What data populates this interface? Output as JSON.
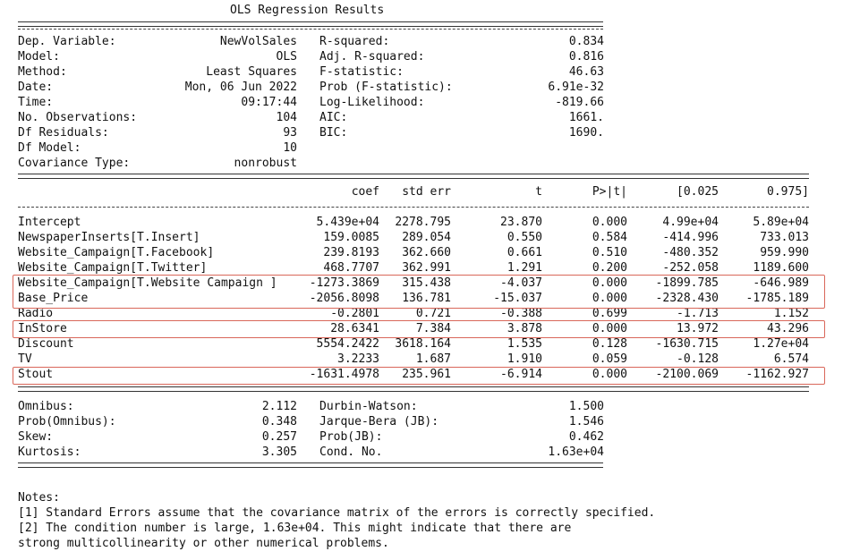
{
  "title": "OLS Regression Results",
  "summary": {
    "left": [
      {
        "label": "Dep. Variable:",
        "value": "NewVolSales"
      },
      {
        "label": "Model:",
        "value": "OLS"
      },
      {
        "label": "Method:",
        "value": "Least Squares"
      },
      {
        "label": "Date:",
        "value": "Mon, 06 Jun 2022"
      },
      {
        "label": "Time:",
        "value": "09:17:44"
      },
      {
        "label": "No. Observations:",
        "value": "104"
      },
      {
        "label": "Df Residuals:",
        "value": "93"
      },
      {
        "label": "Df Model:",
        "value": "10"
      },
      {
        "label": "Covariance Type:",
        "value": "nonrobust"
      }
    ],
    "right": [
      {
        "label": "R-squared:",
        "value": "0.834"
      },
      {
        "label": "Adj. R-squared:",
        "value": "0.816"
      },
      {
        "label": "F-statistic:",
        "value": "46.63"
      },
      {
        "label": "Prob (F-statistic):",
        "value": "6.91e-32"
      },
      {
        "label": "Log-Likelihood:",
        "value": "-819.66"
      },
      {
        "label": "AIC:",
        "value": "1661."
      },
      {
        "label": "BIC:",
        "value": "1690."
      }
    ]
  },
  "coef_table": {
    "headers": [
      "coef",
      "std err",
      "t",
      "P>|t|",
      "[0.025",
      "0.975]"
    ],
    "rows": [
      {
        "name": "Intercept",
        "values": [
          "5.439e+04",
          "2278.795",
          "23.870",
          "0.000",
          "4.99e+04",
          "5.89e+04"
        ]
      },
      {
        "name": "NewspaperInserts[T.Insert]",
        "values": [
          "159.0085",
          "289.054",
          "0.550",
          "0.584",
          "-414.996",
          "733.013"
        ]
      },
      {
        "name": "Website_Campaign[T.Facebook]",
        "values": [
          "239.8193",
          "362.660",
          "0.661",
          "0.510",
          "-480.352",
          "959.990"
        ]
      },
      {
        "name": "Website_Campaign[T.Twitter]",
        "values": [
          "468.7707",
          "362.991",
          "1.291",
          "0.200",
          "-252.058",
          "1189.600"
        ]
      },
      {
        "name": "Website_Campaign[T.Website Campaign ]",
        "values": [
          "-1273.3869",
          "315.438",
          "-4.037",
          "0.000",
          "-1899.785",
          "-646.989"
        ]
      },
      {
        "name": "Base_Price",
        "values": [
          "-2056.8098",
          "136.781",
          "-15.037",
          "0.000",
          "-2328.430",
          "-1785.189"
        ]
      },
      {
        "name": "Radio",
        "values": [
          "-0.2801",
          "0.721",
          "-0.388",
          "0.699",
          "-1.713",
          "1.152"
        ]
      },
      {
        "name": "InStore",
        "values": [
          "28.6341",
          "7.384",
          "3.878",
          "0.000",
          "13.972",
          "43.296"
        ]
      },
      {
        "name": "Discount",
        "values": [
          "5554.2422",
          "3618.164",
          "1.535",
          "0.128",
          "-1630.715",
          "1.27e+04"
        ]
      },
      {
        "name": "TV",
        "values": [
          "3.2233",
          "1.687",
          "1.910",
          "0.059",
          "-0.128",
          "6.574"
        ]
      },
      {
        "name": "Stout",
        "values": [
          "-1631.4978",
          "235.961",
          "-6.914",
          "0.000",
          "-2100.069",
          "-1162.927"
        ]
      }
    ]
  },
  "diagnostics": {
    "left": [
      {
        "label": "Omnibus:",
        "value": "2.112"
      },
      {
        "label": "Prob(Omnibus):",
        "value": "0.348"
      },
      {
        "label": "Skew:",
        "value": "0.257"
      },
      {
        "label": "Kurtosis:",
        "value": "3.305"
      }
    ],
    "right": [
      {
        "label": "Durbin-Watson:",
        "value": "1.500"
      },
      {
        "label": "Jarque-Bera (JB):",
        "value": "1.546"
      },
      {
        "label": "Prob(JB):",
        "value": "0.462"
      },
      {
        "label": "Cond. No.",
        "value": "1.63e+04"
      }
    ]
  },
  "notes": [
    "Notes:",
    "[1] Standard Errors assume that the covariance matrix of the errors is correctly specified.",
    "[2] The condition number is large, 1.63e+04. This might indicate that there are",
    "strong multicollinearity or other numerical problems."
  ],
  "highlight_color": "#d9675a"
}
